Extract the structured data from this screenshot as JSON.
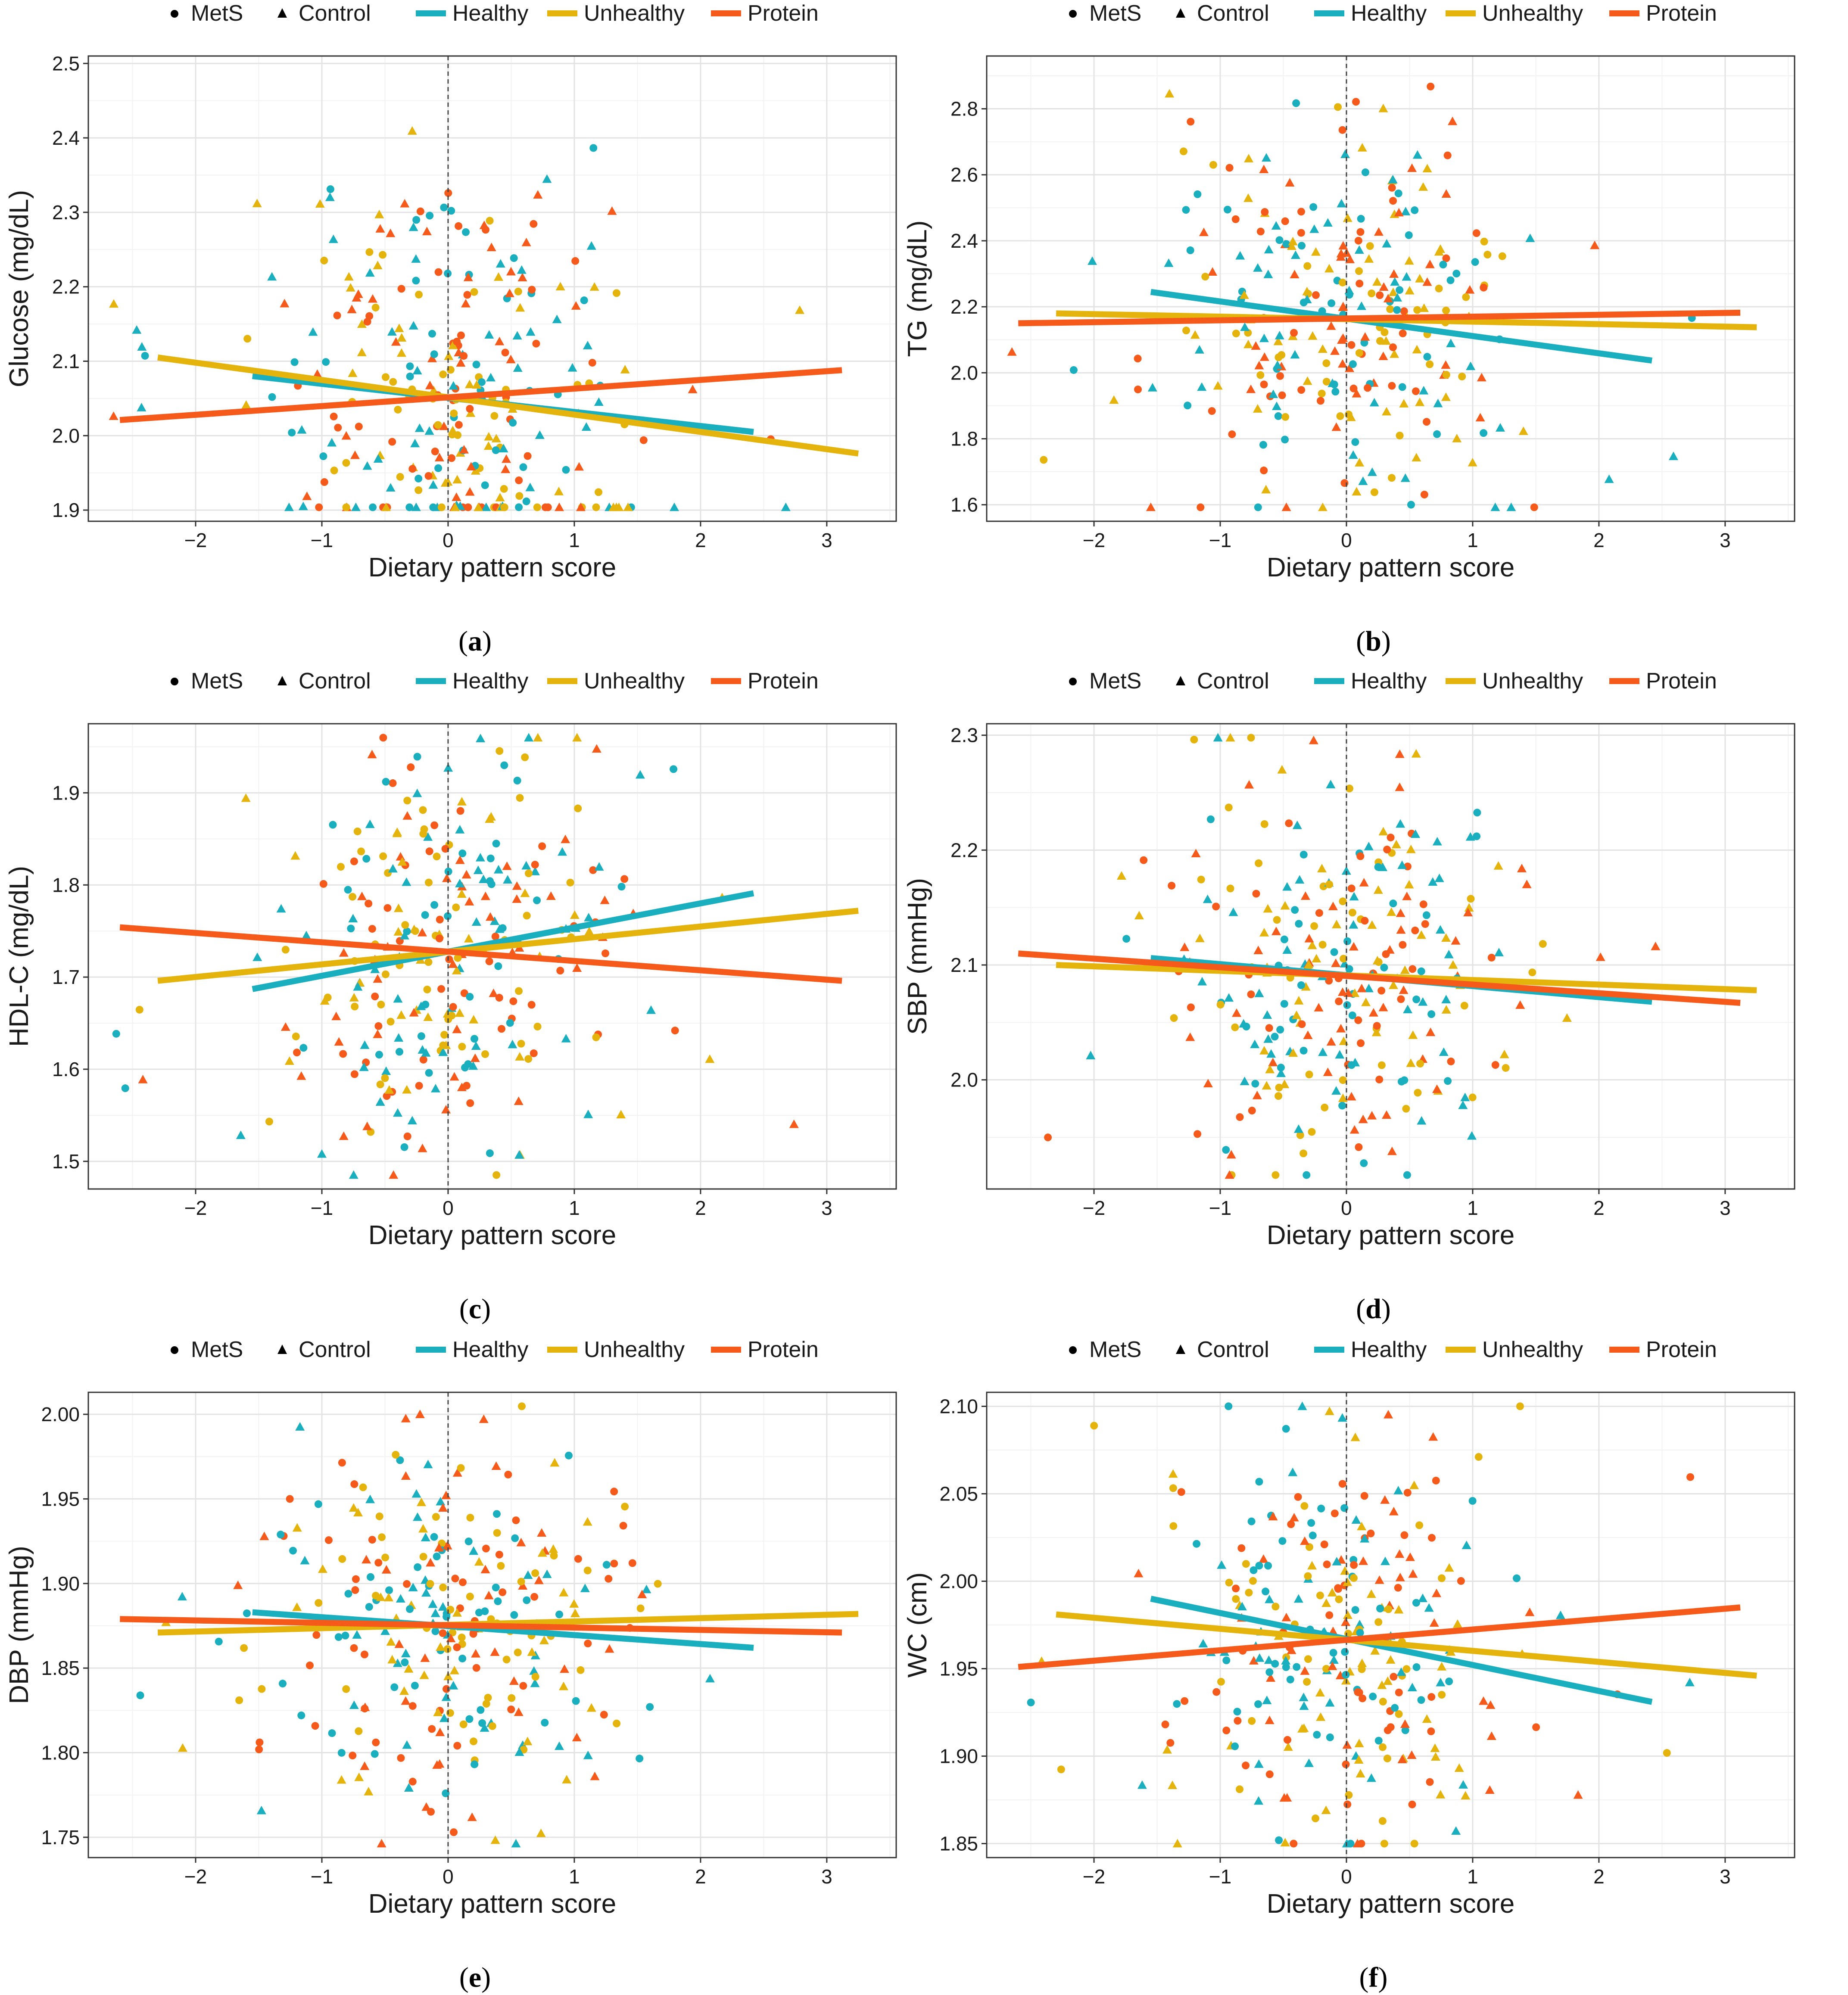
{
  "legend": {
    "shape_items": [
      "MetS",
      "Control"
    ],
    "line_items": [
      "Healthy",
      "Unhealthy",
      "Protein"
    ]
  },
  "colors": {
    "Healthy": "#1aafbf",
    "Unhealthy": "#e5b40c",
    "Protein": "#f65a1a"
  },
  "chart_data": [
    {
      "id": "a",
      "panel_label": "a",
      "type": "scatter",
      "xlabel": "Dietary pattern score",
      "ylabel": "Glucose (mg/dL)",
      "xlim": [
        -2.85,
        3.55
      ],
      "ylim": [
        1.885,
        2.51
      ],
      "xticks": [
        -2,
        -1,
        0,
        1,
        2,
        3
      ],
      "xtick_labels": [
        "−2",
        "−1",
        "0",
        "1",
        "2",
        "3"
      ],
      "yticks": [
        1.9,
        2.0,
        2.1,
        2.2,
        2.3,
        2.4,
        2.5
      ],
      "ytick_labels": [
        "1.9",
        "2.0",
        "2.1",
        "2.2",
        "2.3",
        "2.4",
        "2.5"
      ],
      "series": [
        {
          "name": "Healthy",
          "line": [
            [
              -1.55,
              2.08
            ],
            [
              2.42,
              2.005
            ]
          ]
        },
        {
          "name": "Unhealthy",
          "line": [
            [
              -2.3,
              2.105
            ],
            [
              3.25,
              1.976
            ]
          ]
        },
        {
          "name": "Protein",
          "line": [
            [
              -2.6,
              2.021
            ],
            [
              3.12,
              2.088
            ]
          ]
        }
      ],
      "seed": 11
    },
    {
      "id": "b",
      "panel_label": "b",
      "type": "scatter",
      "xlabel": "Dietary pattern score",
      "ylabel": "TG (mg/dL)",
      "xlim": [
        -2.85,
        3.55
      ],
      "ylim": [
        1.55,
        2.96
      ],
      "xticks": [
        -2,
        -1,
        0,
        1,
        2,
        3
      ],
      "xtick_labels": [
        "−2",
        "−1",
        "0",
        "1",
        "2",
        "3"
      ],
      "yticks": [
        1.6,
        1.8,
        2.0,
        2.2,
        2.4,
        2.6,
        2.8
      ],
      "ytick_labels": [
        "1.6",
        "1.8",
        "2.0",
        "2.2",
        "2.4",
        "2.6",
        "2.8"
      ],
      "series": [
        {
          "name": "Healthy",
          "line": [
            [
              -1.55,
              2.245
            ],
            [
              2.42,
              2.037
            ]
          ]
        },
        {
          "name": "Unhealthy",
          "line": [
            [
              -2.3,
              2.18
            ],
            [
              3.25,
              2.138
            ]
          ]
        },
        {
          "name": "Protein",
          "line": [
            [
              -2.6,
              2.15
            ],
            [
              3.12,
              2.182
            ]
          ]
        }
      ],
      "seed": 23
    },
    {
      "id": "c",
      "panel_label": "c",
      "type": "scatter",
      "xlabel": "Dietary pattern score",
      "ylabel": "HDL-C (mg/dL)",
      "xlim": [
        -2.85,
        3.55
      ],
      "ylim": [
        1.47,
        1.975
      ],
      "xticks": [
        -2,
        -1,
        0,
        1,
        2,
        3
      ],
      "xtick_labels": [
        "−2",
        "−1",
        "0",
        "1",
        "2",
        "3"
      ],
      "yticks": [
        1.5,
        1.6,
        1.7,
        1.8,
        1.9
      ],
      "ytick_labels": [
        "1.5",
        "1.6",
        "1.7",
        "1.8",
        "1.9"
      ],
      "series": [
        {
          "name": "Healthy",
          "line": [
            [
              -1.55,
              1.687
            ],
            [
              2.42,
              1.791
            ]
          ]
        },
        {
          "name": "Unhealthy",
          "line": [
            [
              -2.3,
              1.696
            ],
            [
              3.25,
              1.772
            ]
          ]
        },
        {
          "name": "Protein",
          "line": [
            [
              -2.6,
              1.754
            ],
            [
              3.12,
              1.696
            ]
          ]
        }
      ],
      "seed": 37
    },
    {
      "id": "d",
      "panel_label": "d",
      "type": "scatter",
      "xlabel": "Dietary pattern score",
      "ylabel": "SBP (mmHg)",
      "xlim": [
        -2.85,
        3.55
      ],
      "ylim": [
        1.905,
        2.31
      ],
      "xticks": [
        -2,
        -1,
        0,
        1,
        2,
        3
      ],
      "xtick_labels": [
        "−2",
        "−1",
        "0",
        "1",
        "2",
        "3"
      ],
      "yticks": [
        2.0,
        2.1,
        2.2,
        2.3
      ],
      "ytick_labels": [
        "2.0",
        "2.1",
        "2.2",
        "2.3"
      ],
      "series": [
        {
          "name": "Healthy",
          "line": [
            [
              -1.55,
              2.106
            ],
            [
              2.42,
              2.068
            ]
          ]
        },
        {
          "name": "Unhealthy",
          "line": [
            [
              -2.3,
              2.1
            ],
            [
              3.25,
              2.078
            ]
          ]
        },
        {
          "name": "Protein",
          "line": [
            [
              -2.6,
              2.11
            ],
            [
              3.12,
              2.067
            ]
          ]
        }
      ],
      "seed": 41
    },
    {
      "id": "e",
      "panel_label": "e",
      "type": "scatter",
      "xlabel": "Dietary pattern score",
      "ylabel": "DBP (mmHg)",
      "xlim": [
        -2.85,
        3.55
      ],
      "ylim": [
        1.738,
        2.013
      ],
      "xticks": [
        -2,
        -1,
        0,
        1,
        2,
        3
      ],
      "xtick_labels": [
        "−2",
        "−1",
        "0",
        "1",
        "2",
        "3"
      ],
      "yticks": [
        1.75,
        1.8,
        1.85,
        1.9,
        1.95,
        2.0
      ],
      "ytick_labels": [
        "1.75",
        "1.80",
        "1.85",
        "1.90",
        "1.95",
        "2.00"
      ],
      "series": [
        {
          "name": "Healthy",
          "line": [
            [
              -1.55,
              1.883
            ],
            [
              2.42,
              1.862
            ]
          ]
        },
        {
          "name": "Unhealthy",
          "line": [
            [
              -2.3,
              1.871
            ],
            [
              3.25,
              1.882
            ]
          ]
        },
        {
          "name": "Protein",
          "line": [
            [
              -2.6,
              1.879
            ],
            [
              3.12,
              1.871
            ]
          ]
        }
      ],
      "seed": 53
    },
    {
      "id": "f",
      "panel_label": "f",
      "type": "scatter",
      "xlabel": "Dietary pattern score",
      "ylabel": "WC (cm)",
      "xlim": [
        -2.85,
        3.55
      ],
      "ylim": [
        1.842,
        2.108
      ],
      "xticks": [
        -2,
        -1,
        0,
        1,
        2,
        3
      ],
      "xtick_labels": [
        "−2",
        "−1",
        "0",
        "1",
        "2",
        "3"
      ],
      "yticks": [
        1.85,
        1.9,
        1.95,
        2.0,
        2.05,
        2.1
      ],
      "ytick_labels": [
        "1.85",
        "1.90",
        "1.95",
        "2.00",
        "2.05",
        "2.10"
      ],
      "series": [
        {
          "name": "Healthy",
          "line": [
            [
              -1.55,
              1.99
            ],
            [
              2.42,
              1.931
            ]
          ]
        },
        {
          "name": "Unhealthy",
          "line": [
            [
              -2.3,
              1.981
            ],
            [
              3.25,
              1.946
            ]
          ]
        },
        {
          "name": "Protein",
          "line": [
            [
              -2.6,
              1.951
            ],
            [
              3.12,
              1.985
            ]
          ]
        }
      ],
      "seed": 67
    }
  ]
}
